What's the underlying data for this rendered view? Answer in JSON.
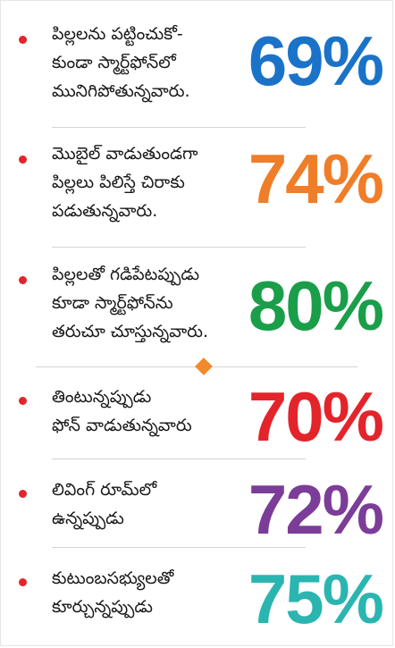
{
  "items": [
    {
      "text": "పిల్లలను పట్టించుకో-\nకుండా స్మార్ట్‌ఫోన్‌లో\nమునిగిపోతున్నవారు.",
      "value": "69%",
      "color": "#1a73c8"
    },
    {
      "text": "మొబైల్ వాడుతుండగా\nపిల్లలు పిలిస్తే చిరాకు\nపడుతున్నవారు.",
      "value": "74%",
      "color": "#f07d28"
    },
    {
      "text": "పిల్లలతో గడిపేటప్పుడు\nకూడా స్మార్ట్‌ఫోన్‌ను\nతరుచూ చూస్తున్నవారు.",
      "value": "80%",
      "color": "#1a9e49"
    },
    {
      "text": "తింటున్నప్పుడు\nఫోన్ వాడుతున్నవారు",
      "value": "70%",
      "color": "#e3242b"
    },
    {
      "text": "లివింగ్ రూమ్‌లో\nఉన్నప్పుడు",
      "value": "72%",
      "color": "#7b3d97"
    },
    {
      "text": "కుటుంబసభ్యులతో\nకూర్చున్నప్పుడు",
      "value": "75%",
      "color": "#2bb5b0"
    }
  ]
}
